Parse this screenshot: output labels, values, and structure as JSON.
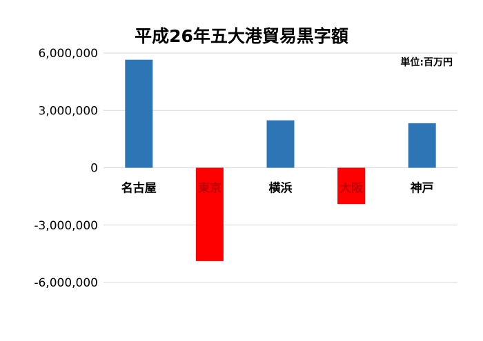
{
  "chart_data": {
    "type": "bar",
    "title": "平成26年五大港貿易黒字額",
    "unit_note": "単位:百万円",
    "categories": [
      "名古屋",
      "東京",
      "横浜",
      "大阪",
      "神戸"
    ],
    "values": [
      5650000,
      -4880000,
      2480000,
      -1900000,
      2330000
    ],
    "bar_colors": [
      "#2E75B6",
      "#FF0000",
      "#2E75B6",
      "#FF0000",
      "#2E75B6"
    ],
    "category_label_colors": [
      "#000000",
      "#C00000",
      "#000000",
      "#C00000",
      "#000000"
    ],
    "yticks": [
      6000000,
      3000000,
      0,
      -3000000,
      -6000000
    ],
    "ytick_labels": [
      "6,000,000",
      "3,000,000",
      "0",
      "-3,000,000",
      "-6,000,000"
    ],
    "ylim": [
      -6000000,
      6000000
    ],
    "grid": true,
    "xlabel": "",
    "ylabel": ""
  }
}
